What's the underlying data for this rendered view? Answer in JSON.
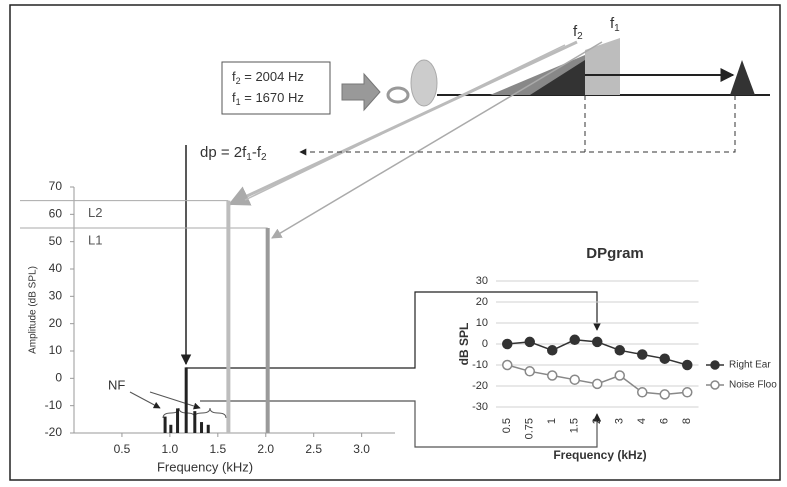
{
  "diagram": {
    "stimulus": [
      {
        "symbol": "f",
        "sub": "2",
        "text": " = 2004 Hz"
      },
      {
        "symbol": "f",
        "sub": "1",
        "text": " = 1670 Hz"
      }
    ],
    "tone_labels": [
      {
        "symbol": "f",
        "sub": "2"
      },
      {
        "symbol": "f",
        "sub": "1"
      }
    ],
    "dp_formula": [
      "dp = 2f",
      "1",
      "-f",
      "2"
    ]
  },
  "chart_data": [
    {
      "type": "bar",
      "x": [
        0.95,
        1.01,
        1.08,
        1.17,
        1.26,
        1.33,
        1.4,
        1.61,
        2.02
      ],
      "values": [
        -14,
        -17,
        -11,
        4,
        -12,
        -16,
        -17,
        65,
        55
      ],
      "colors": [
        "#222222",
        "#222222",
        "#222222",
        "#222222",
        "#222222",
        "#222222",
        "#222222",
        "#bdbdbd",
        "#9a9a9a"
      ],
      "xlim": [
        0,
        3.4
      ],
      "ylim": [
        -20,
        70
      ],
      "xticks": [
        0.5,
        {
          "value": 1,
          "label": "1.0"
        },
        1.5,
        {
          "value": 2,
          "label": "2.0"
        },
        2.5,
        {
          "value": 3,
          "label": "3.0"
        }
      ],
      "yticks": [
        -20,
        -10,
        0,
        10,
        20,
        30,
        40,
        50,
        60,
        70
      ],
      "xlabel": "Frequency  (kHz)",
      "ylabel": "Amplitude (dB SPL)",
      "reference_lines": [
        {
          "label": "L2",
          "value": 65
        },
        {
          "label": "L1",
          "value": 55
        }
      ],
      "annotation": "NF"
    },
    {
      "type": "line",
      "title": "DPgram",
      "categories": [
        "0.5",
        "0.75",
        "1",
        "1.5",
        "2",
        "3",
        "4",
        "6",
        "8"
      ],
      "series": [
        {
          "name": "Right Ear",
          "color": "#333333",
          "marker": "filled",
          "values": [
            0,
            1,
            -3,
            2,
            1,
            -3,
            -5,
            -7,
            -10
          ]
        },
        {
          "name": "Noise Floo",
          "color": "#888888",
          "marker": "open",
          "values": [
            -10,
            -13,
            -15,
            -17,
            -19,
            -15,
            -23,
            -24,
            -23
          ]
        }
      ],
      "ylim": [
        -30,
        30
      ],
      "yticks": [
        -30,
        -20,
        -10,
        0,
        10,
        20,
        30
      ],
      "xlabel": "Frequency (kHz)",
      "ylabel": "dB SPL",
      "grid": true
    }
  ]
}
